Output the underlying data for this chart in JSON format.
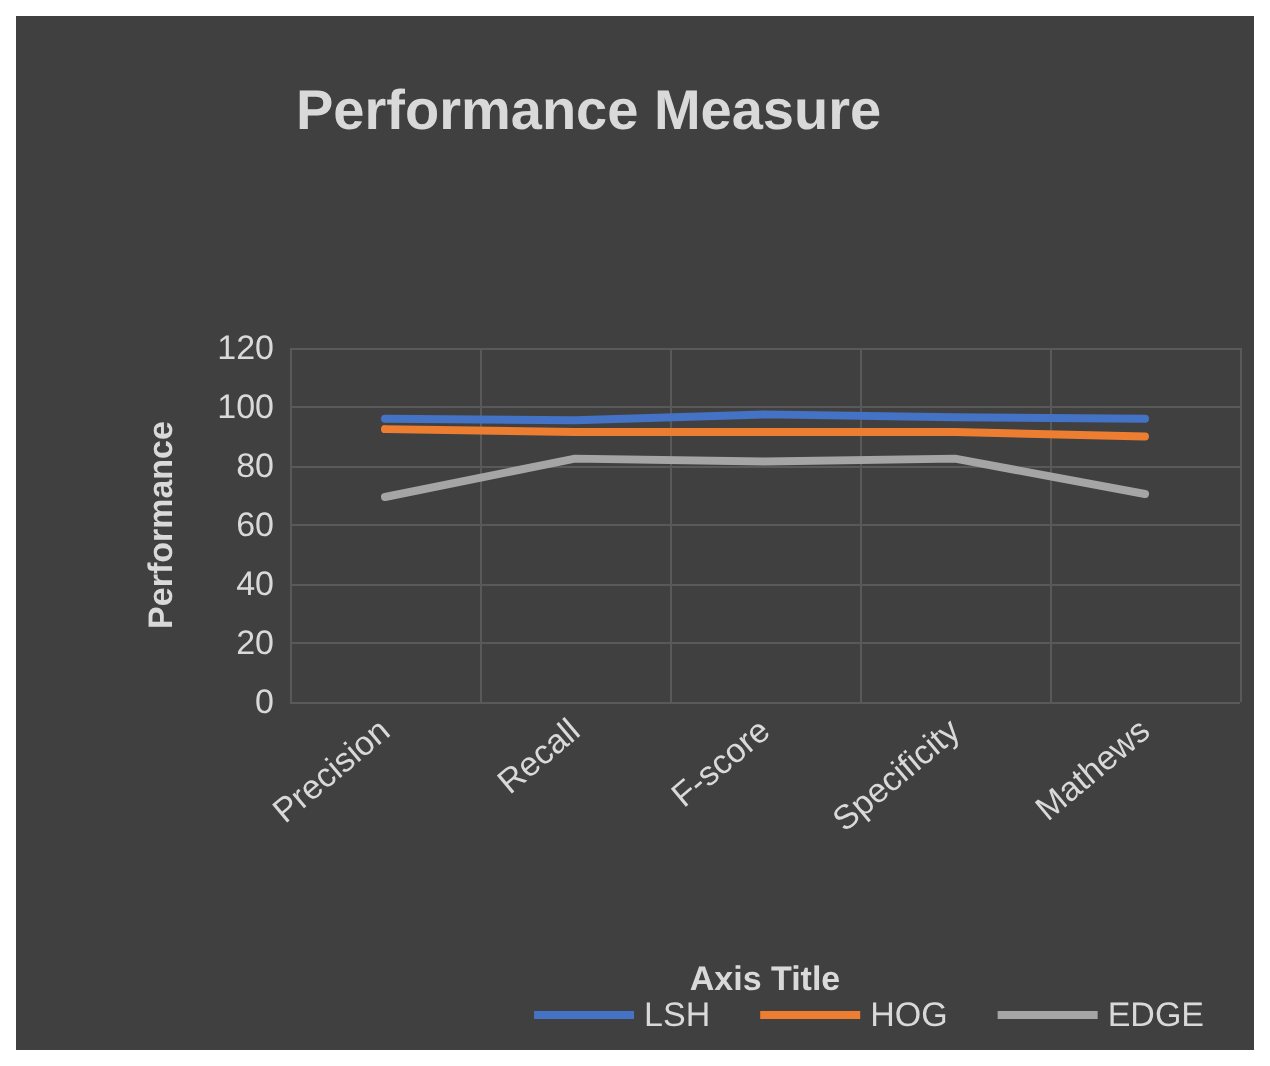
{
  "chart_data": {
    "type": "line",
    "title": "Performance Measure",
    "xlabel": "Axis Title",
    "ylabel": "Performance",
    "categories": [
      "Precision",
      "Recall",
      "F-score",
      "Specificity",
      "Mathews"
    ],
    "series": [
      {
        "name": "LSH",
        "color": "#4472c4",
        "values": [
          96,
          95.5,
          97.5,
          96.5,
          96
        ]
      },
      {
        "name": "HOG",
        "color": "#ed7d31",
        "values": [
          92.5,
          91.5,
          91.5,
          91.5,
          90
        ]
      },
      {
        "name": "EDGE",
        "color": "#a5a5a5",
        "values": [
          69.5,
          82.5,
          81.5,
          82.5,
          70.5
        ]
      }
    ],
    "ylim": [
      0,
      120
    ],
    "yticks": [
      0,
      20,
      40,
      60,
      80,
      100,
      120
    ],
    "grid": true,
    "legend": "bottom",
    "marker": "none",
    "line_style": "solid"
  }
}
